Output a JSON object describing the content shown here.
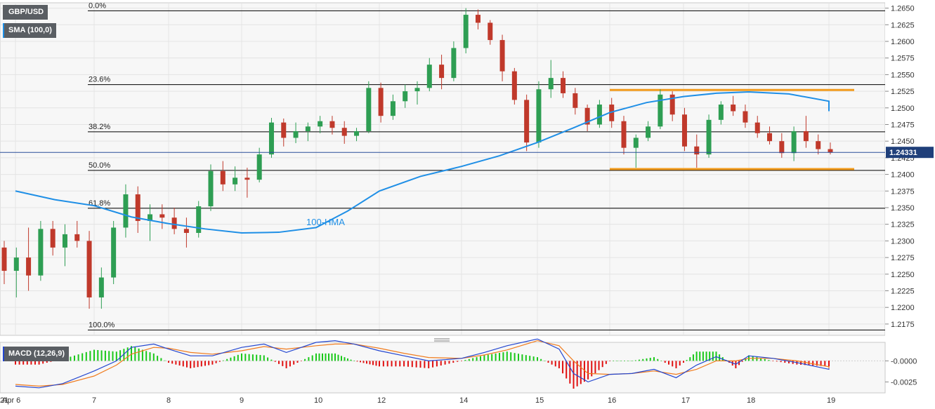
{
  "instrument": "GBP/USD",
  "indicator_label": "SMA (100,0)",
  "macd_label": "MACD (12,26,9)",
  "annotation_hma": "100-HMA",
  "last_price": "1.24331",
  "colors": {
    "up": "#2e9e53",
    "down": "#c0392b",
    "hma": "#1f8fe6",
    "channel": "#f39c1e",
    "macd_line": "#2346d0",
    "signal_line": "#f07b1d",
    "hist_pos": "#19c819",
    "hist_neg": "#e01010",
    "price_tag": "#1f3f7a",
    "grid": "#e4e4e4",
    "panel_bg": "#f7f7f7"
  },
  "chart_data": [
    {
      "type": "candlestick",
      "title": "GBP/USD",
      "ylim": [
        1.2158,
        1.2658
      ],
      "y_ticks": [
        "1.2650",
        "1.2625",
        "1.2600",
        "1.2575",
        "1.2550",
        "1.2525",
        "1.2500",
        "1.2475",
        "1.2450",
        "1.2425",
        "1.2400",
        "1.2375",
        "1.2350",
        "1.2325",
        "1.2300",
        "1.2275",
        "1.2250",
        "1.2225",
        "1.2200",
        "1.2175"
      ],
      "x_ticks": [
        "Apr 6",
        "7",
        "8",
        "9",
        "10",
        "12",
        "14",
        "15",
        "16",
        "17",
        "18",
        "19",
        "21"
      ],
      "fibonacci": [
        {
          "label": "0.0%",
          "value": 1.2646
        },
        {
          "label": "23.6%",
          "value": 1.2535
        },
        {
          "label": "38.2%",
          "value": 1.2464
        },
        {
          "label": "50.0%",
          "value": 1.2406
        },
        {
          "label": "61.8%",
          "value": 1.2349
        },
        {
          "label": "100.0%",
          "value": 1.2166
        }
      ],
      "channel": {
        "upper": 1.2527,
        "lower": 1.2408,
        "from": "16",
        "to": "21"
      },
      "last_price": 1.24331,
      "hma_label": "100-HMA",
      "hma": [
        [
          0,
          1.2375
        ],
        [
          0.5,
          1.2362
        ],
        [
          1,
          1.2353
        ],
        [
          1.5,
          1.2336
        ],
        [
          2,
          1.2326
        ],
        [
          2.5,
          1.2318
        ],
        [
          3,
          1.2312
        ],
        [
          3.5,
          1.2313
        ],
        [
          4,
          1.232
        ],
        [
          4.5,
          1.2345
        ],
        [
          5,
          1.2375
        ],
        [
          5.5,
          1.2397
        ],
        [
          6,
          1.2412
        ],
        [
          6.5,
          1.2428
        ],
        [
          7,
          1.2448
        ],
        [
          7.5,
          1.247
        ],
        [
          8,
          1.2493
        ],
        [
          8.5,
          1.2508
        ],
        [
          9,
          1.2517
        ],
        [
          9.5,
          1.2522
        ],
        [
          10,
          1.2524
        ],
        [
          10.5,
          1.2521
        ],
        [
          11,
          1.251
        ],
        [
          11.5,
          1.2495
        ]
      ],
      "candles_ohlc": [
        [
          1.229,
          1.23,
          1.2235,
          1.2255
        ],
        [
          1.2255,
          1.229,
          1.2215,
          1.2275
        ],
        [
          1.2275,
          1.232,
          1.2225,
          1.2248
        ],
        [
          1.2248,
          1.233,
          1.224,
          1.2318
        ],
        [
          1.2318,
          1.233,
          1.2278,
          1.229
        ],
        [
          1.229,
          1.2325,
          1.2262,
          1.231
        ],
        [
          1.231,
          1.233,
          1.229,
          1.23
        ],
        [
          1.23,
          1.2315,
          1.2198,
          1.2215
        ],
        [
          1.2215,
          1.226,
          1.2198,
          1.2245
        ],
        [
          1.2245,
          1.233,
          1.2235,
          1.232
        ],
        [
          1.232,
          1.2385,
          1.2305,
          1.237
        ],
        [
          1.237,
          1.2382,
          1.2312,
          1.233
        ],
        [
          1.233,
          1.2355,
          1.23,
          1.234
        ],
        [
          1.234,
          1.2355,
          1.2318,
          1.2335
        ],
        [
          1.2335,
          1.235,
          1.231,
          1.2318
        ],
        [
          1.2318,
          1.2335,
          1.229,
          1.2312
        ],
        [
          1.2312,
          1.236,
          1.2305,
          1.2352
        ],
        [
          1.2352,
          1.2415,
          1.2345,
          1.2405
        ],
        [
          1.2405,
          1.242,
          1.2375,
          1.2385
        ],
        [
          1.2385,
          1.2412,
          1.2375,
          1.2395
        ],
        [
          1.2395,
          1.241,
          1.2365,
          1.2392
        ],
        [
          1.2392,
          1.244,
          1.2388,
          1.243
        ],
        [
          1.243,
          1.2485,
          1.2425,
          1.2478
        ],
        [
          1.2478,
          1.2484,
          1.2442,
          1.2455
        ],
        [
          1.2455,
          1.2478,
          1.2447,
          1.2465
        ],
        [
          1.2465,
          1.2478,
          1.245,
          1.2472
        ],
        [
          1.2472,
          1.2488,
          1.2462,
          1.248
        ],
        [
          1.248,
          1.2488,
          1.246,
          1.247
        ],
        [
          1.247,
          1.248,
          1.2446,
          1.2458
        ],
        [
          1.2458,
          1.247,
          1.245,
          1.2465
        ],
        [
          1.2465,
          1.254,
          1.2462,
          1.253
        ],
        [
          1.253,
          1.2538,
          1.2478,
          1.2488
        ],
        [
          1.2488,
          1.252,
          1.2482,
          1.251
        ],
        [
          1.251,
          1.2535,
          1.25,
          1.2525
        ],
        [
          1.2525,
          1.254,
          1.2505,
          1.253
        ],
        [
          1.253,
          1.2575,
          1.2525,
          1.2565
        ],
        [
          1.2565,
          1.258,
          1.2528,
          1.2545
        ],
        [
          1.2545,
          1.26,
          1.254,
          1.259
        ],
        [
          1.259,
          1.265,
          1.2582,
          1.264
        ],
        [
          1.264,
          1.2648,
          1.2618,
          1.2628
        ],
        [
          1.2628,
          1.2632,
          1.2595,
          1.2602
        ],
        [
          1.2602,
          1.261,
          1.254,
          1.2555
        ],
        [
          1.2555,
          1.256,
          1.2505,
          1.2512
        ],
        [
          1.2512,
          1.252,
          1.2435,
          1.2448
        ],
        [
          1.2448,
          1.254,
          1.244,
          1.2528
        ],
        [
          1.2528,
          1.2572,
          1.2515,
          1.2545
        ],
        [
          1.2545,
          1.2555,
          1.2515,
          1.2522
        ],
        [
          1.2522,
          1.253,
          1.249,
          1.25
        ],
        [
          1.25,
          1.2505,
          1.2465,
          1.2475
        ],
        [
          1.2475,
          1.2512,
          1.247,
          1.2505
        ],
        [
          1.2505,
          1.2515,
          1.247,
          1.248
        ],
        [
          1.248,
          1.2488,
          1.243,
          1.244
        ],
        [
          1.244,
          1.246,
          1.241,
          1.2455
        ],
        [
          1.2455,
          1.248,
          1.245,
          1.2472
        ],
        [
          1.2472,
          1.2528,
          1.2468,
          1.252
        ],
        [
          1.252,
          1.2525,
          1.248,
          1.249
        ],
        [
          1.249,
          1.25,
          1.2435,
          1.2442
        ],
        [
          1.2442,
          1.246,
          1.241,
          1.243
        ],
        [
          1.243,
          1.249,
          1.2425,
          1.2482
        ],
        [
          1.2482,
          1.251,
          1.2475,
          1.2505
        ],
        [
          1.2505,
          1.2518,
          1.2488,
          1.2495
        ],
        [
          1.2495,
          1.2505,
          1.247,
          1.2478
        ],
        [
          1.2478,
          1.2488,
          1.2455,
          1.2462
        ],
        [
          1.2462,
          1.2472,
          1.2445,
          1.245
        ],
        [
          1.245,
          1.2462,
          1.2425,
          1.2432
        ],
        [
          1.2432,
          1.2472,
          1.242,
          1.2465
        ],
        [
          1.2465,
          1.2488,
          1.244,
          1.245
        ],
        [
          1.245,
          1.246,
          1.243,
          1.2438
        ],
        [
          1.2438,
          1.2448,
          1.243,
          1.2433
        ]
      ]
    },
    {
      "type": "line",
      "title": "MACD (12,26,9)",
      "ylim": [
        -0.0038,
        0.0022
      ],
      "y_ticks": [
        "-0.0000",
        "-0.0025"
      ],
      "series": [
        {
          "name": "MACD",
          "values": [
            [
              0,
              -0.003
            ],
            [
              0.3,
              -0.0032
            ],
            [
              0.6,
              -0.0027
            ],
            [
              1,
              -0.0012
            ],
            [
              1.3,
              0.0
            ],
            [
              1.5,
              0.0016
            ],
            [
              1.8,
              0.002
            ],
            [
              2,
              0.0014
            ],
            [
              2.3,
              0.0006
            ],
            [
              2.6,
              0.0006
            ],
            [
              3,
              0.0016
            ],
            [
              3.3,
              0.002
            ],
            [
              3.6,
              0.001
            ],
            [
              4,
              0.0022
            ],
            [
              4.3,
              0.0024
            ],
            [
              4.6,
              0.002
            ],
            [
              5,
              0.0012
            ],
            [
              5.3,
              0.0006
            ],
            [
              5.6,
              0.0
            ],
            [
              6,
              0.0003
            ],
            [
              6.3,
              0.001
            ],
            [
              6.6,
              0.0018
            ],
            [
              7,
              0.0026
            ],
            [
              7.3,
              0.0014
            ],
            [
              7.5,
              -0.0015
            ],
            [
              7.7,
              -0.0025
            ],
            [
              8,
              -0.0016
            ],
            [
              8.3,
              -0.0015
            ],
            [
              8.6,
              -0.001
            ],
            [
              8.9,
              -0.002
            ],
            [
              9.2,
              -0.0005
            ],
            [
              9.5,
              0.0005
            ],
            [
              9.8,
              -0.0004
            ],
            [
              10,
              0.0006
            ],
            [
              10.3,
              0.0003
            ],
            [
              10.6,
              -0.0002
            ],
            [
              11,
              -0.001
            ],
            [
              11.5,
              -0.0009
            ]
          ]
        },
        {
          "name": "Signal",
          "values": [
            [
              0,
              -0.0028
            ],
            [
              0.3,
              -0.003
            ],
            [
              0.6,
              -0.0028
            ],
            [
              1,
              -0.0018
            ],
            [
              1.3,
              -0.0005
            ],
            [
              1.5,
              0.0008
            ],
            [
              1.8,
              0.0016
            ],
            [
              2,
              0.0015
            ],
            [
              2.3,
              0.001
            ],
            [
              2.6,
              0.0008
            ],
            [
              3,
              0.0012
            ],
            [
              3.3,
              0.0017
            ],
            [
              3.6,
              0.0014
            ],
            [
              4,
              0.0018
            ],
            [
              4.3,
              0.002
            ],
            [
              4.6,
              0.002
            ],
            [
              5,
              0.0015
            ],
            [
              5.3,
              0.0009
            ],
            [
              5.6,
              0.0004
            ],
            [
              6,
              0.0003
            ],
            [
              6.3,
              0.0007
            ],
            [
              6.6,
              0.0013
            ],
            [
              7,
              0.0024
            ],
            [
              7.3,
              0.0018
            ],
            [
              7.5,
              0.0
            ],
            [
              7.7,
              -0.0015
            ],
            [
              8,
              -0.0016
            ],
            [
              8.3,
              -0.0015
            ],
            [
              8.6,
              -0.0012
            ],
            [
              8.9,
              -0.0016
            ],
            [
              9.2,
              -0.001
            ],
            [
              9.5,
              0.0
            ],
            [
              9.8,
              0.0
            ],
            [
              10,
              0.0003
            ],
            [
              10.3,
              0.0003
            ],
            [
              10.6,
              0.0
            ],
            [
              11,
              -0.0007
            ],
            [
              11.5,
              -0.0009
            ]
          ]
        }
      ]
    }
  ]
}
